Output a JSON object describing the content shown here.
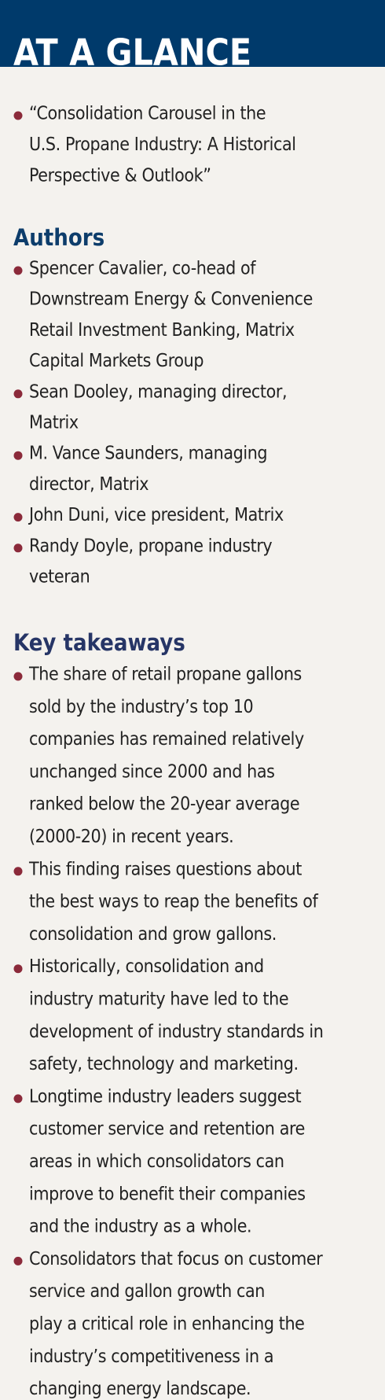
{
  "header": {
    "title": "AT A GLANCE"
  },
  "article": {
    "lines": [
      "“Consolidation Carousel in the",
      "U.S. Propane Industry: A Historical",
      "Perspective & Outlook”"
    ]
  },
  "authors": {
    "heading": "Authors",
    "items": [
      {
        "lines": [
          "Spencer Cavalier, co-head of",
          "Downstream Energy & Convenience",
          "Retail Investment Banking, Matrix",
          "Capital Markets Group"
        ]
      },
      {
        "lines": [
          "Sean Dooley, managing director,",
          "Matrix"
        ]
      },
      {
        "lines": [
          "M. Vance Saunders, managing",
          "director, Matrix"
        ]
      },
      {
        "lines": [
          "John Duni, vice president, Matrix"
        ]
      },
      {
        "lines": [
          "Randy Doyle, propane industry",
          "veteran"
        ]
      }
    ]
  },
  "takeaways": {
    "heading": "Key takeaways",
    "items": [
      {
        "lines": [
          "The share of retail propane gallons",
          "sold by the industry’s top 10",
          "companies has remained relatively",
          "unchanged since 2000 and has",
          "ranked below the 20-year average",
          "(2000-20) in recent years."
        ]
      },
      {
        "lines": [
          "This finding raises questions about",
          "the best ways to reap the benefits of",
          "consolidation and grow gallons."
        ]
      },
      {
        "lines": [
          "Historically, consolidation and",
          "industry maturity have led to the",
          "development of industry standards in",
          "safety, technology and marketing."
        ]
      },
      {
        "lines": [
          "Longtime industry leaders suggest",
          "customer service and retention are",
          "areas in which consolidators can",
          "improve to benefit their companies",
          "and the industry as a whole."
        ]
      },
      {
        "lines": [
          "Consolidators that focus on customer",
          "service and gallon growth can",
          "play a critical role in enhancing the",
          "industry’s competitiveness in a",
          "changing energy landscape."
        ]
      }
    ]
  }
}
